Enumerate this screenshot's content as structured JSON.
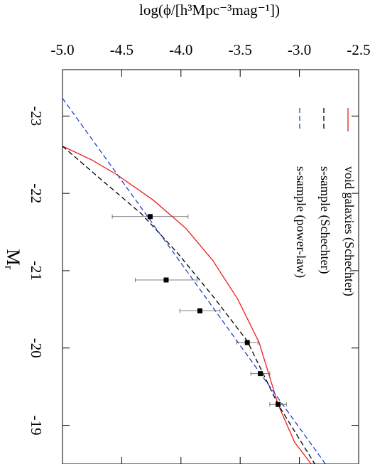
{
  "chart_data": {
    "type": "line",
    "xlabel": "Mᵣ",
    "ylabel": "log(ϕ/[h³Mpc⁻³mag⁻¹])",
    "xlim": [
      -23.6,
      -18.5
    ],
    "ylim": [
      -5.0,
      -2.5
    ],
    "xticks": [
      -23,
      -22,
      -21,
      -20,
      -19
    ],
    "yticks": [
      {
        "value": -5.0,
        "label": "-5.0"
      },
      -4.5,
      {
        "value": -4.0,
        "label": "-4.0"
      },
      -3.5,
      {
        "value": -3.0,
        "label": "-3.0"
      },
      -2.5
    ],
    "legend": "upper left",
    "series": [
      {
        "name": "void galaxies (Schechter)",
        "type": "line",
        "style": "solid",
        "color": "#ee1c1c",
        "x": [
          -22.61,
          -22.43,
          -22.24,
          -21.92,
          -21.55,
          -21.13,
          -20.63,
          -20.07,
          -19.27,
          -18.78,
          -18.5
        ],
        "values": [
          -5.0,
          -4.75,
          -4.54,
          -4.24,
          -3.96,
          -3.73,
          -3.52,
          -3.34,
          -3.18,
          -3.04,
          -2.9
        ]
      },
      {
        "name": "s-sample (Schechter)",
        "type": "line",
        "style": "dashed",
        "color": "#000000",
        "x": [
          -22.61,
          -22.2,
          -21.73,
          -21.23,
          -20.67,
          -20.09,
          -19.27,
          -18.5
        ],
        "values": [
          -5.0,
          -4.69,
          -4.33,
          -4.03,
          -3.73,
          -3.44,
          -3.18,
          -2.87
        ]
      },
      {
        "name": "s-sample (power-law)",
        "type": "line",
        "style": "dashed",
        "color": "#2040d0",
        "x": [
          -23.23,
          -18.5
        ],
        "values": [
          -5.0,
          -2.78
        ]
      },
      {
        "type": "scatter",
        "color": "#000000",
        "x": [
          -21.7,
          -20.88,
          -20.48,
          -20.07,
          -19.67,
          -19.27
        ],
        "values": [
          -4.26,
          -4.125,
          -3.84,
          -3.44,
          -3.33,
          -3.18
        ],
        "errors": [
          0.32,
          0.26,
          0.17,
          0.09,
          0.08,
          0.07
        ]
      }
    ]
  }
}
